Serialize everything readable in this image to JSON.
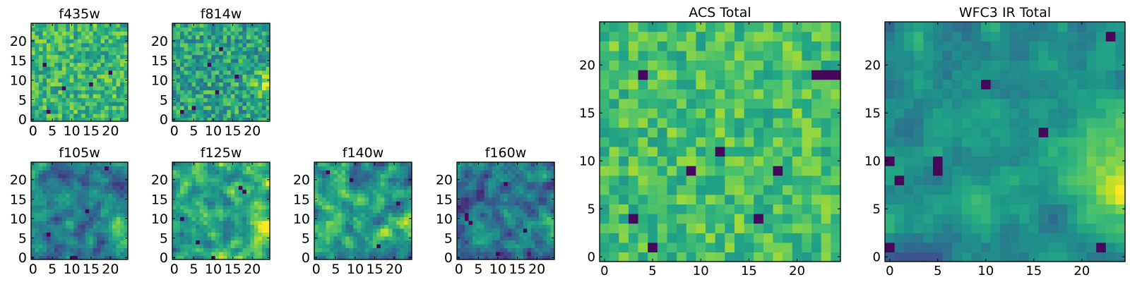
{
  "figure": {
    "panels": [
      {
        "title": "f435w",
        "tick_labels": [
          "0",
          "5",
          "10",
          "15",
          "20"
        ]
      },
      {
        "title": "f814w",
        "tick_labels": [
          "0",
          "5",
          "10",
          "15",
          "20"
        ]
      },
      {
        "title": "f105w",
        "tick_labels": [
          "0",
          "5",
          "10",
          "15",
          "20"
        ]
      },
      {
        "title": "f125w",
        "tick_labels": [
          "0",
          "5",
          "10",
          "15",
          "20"
        ]
      },
      {
        "title": "f140w",
        "tick_labels": [
          "0",
          "5",
          "10",
          "15",
          "20"
        ]
      },
      {
        "title": "f160w",
        "tick_labels": [
          "0",
          "5",
          "10",
          "15",
          "20"
        ]
      },
      {
        "title": "ACS Total",
        "tick_labels": [
          "0",
          "5",
          "10",
          "15",
          "20"
        ]
      },
      {
        "title": "WFC3 IR Total",
        "tick_labels": [
          "0",
          "5",
          "10",
          "15",
          "20"
        ]
      }
    ]
  },
  "chart_data": [
    {
      "type": "heatmap",
      "title": "f435w",
      "grid_size": [
        25,
        25
      ],
      "xlim": [
        0,
        25
      ],
      "ylim": [
        0,
        25
      ],
      "x_ticks": [
        0,
        5,
        10,
        15,
        20
      ],
      "y_ticks": [
        0,
        5,
        10,
        15,
        20
      ],
      "colormap": "viridis",
      "value_range": [
        0,
        1
      ],
      "pattern": "uniform_noise",
      "mean": 0.66,
      "spread": 0.2,
      "dark_pixels": [
        [
          4,
          2
        ],
        [
          8,
          8
        ],
        [
          15,
          9
        ],
        [
          3,
          14
        ],
        [
          20,
          12
        ]
      ],
      "bright_region": null,
      "seed": 11
    },
    {
      "type": "heatmap",
      "title": "f814w",
      "grid_size": [
        25,
        25
      ],
      "xlim": [
        0,
        25
      ],
      "ylim": [
        0,
        25
      ],
      "x_ticks": [
        0,
        5,
        10,
        15,
        20
      ],
      "y_ticks": [
        0,
        5,
        10,
        15,
        20
      ],
      "colormap": "viridis",
      "value_range": [
        0,
        1
      ],
      "pattern": "uniform_noise",
      "mean": 0.58,
      "spread": 0.22,
      "dark_pixels": [
        [
          2,
          2
        ],
        [
          5,
          3
        ],
        [
          11,
          7
        ],
        [
          16,
          11
        ],
        [
          9,
          14
        ],
        [
          12,
          18
        ]
      ],
      "bright_region": {
        "center": [
          24,
          9
        ],
        "radius": 3
      },
      "seed": 23
    },
    {
      "type": "heatmap",
      "title": "f105w",
      "grid_size": [
        25,
        25
      ],
      "xlim": [
        0,
        25
      ],
      "ylim": [
        0,
        25
      ],
      "x_ticks": [
        0,
        5,
        10,
        15,
        20
      ],
      "y_ticks": [
        0,
        5,
        10,
        15,
        20
      ],
      "colormap": "viridis",
      "value_range": [
        0,
        1
      ],
      "pattern": "smooth_noise",
      "mean": 0.42,
      "spread": 0.2,
      "dark_pixels": [
        [
          10,
          0
        ],
        [
          11,
          0
        ],
        [
          4,
          6
        ],
        [
          14,
          12
        ],
        [
          19,
          23
        ]
      ],
      "bright_region": {
        "center": [
          24,
          8
        ],
        "radius": 4
      },
      "seed": 37
    },
    {
      "type": "heatmap",
      "title": "f125w",
      "grid_size": [
        25,
        25
      ],
      "xlim": [
        0,
        25
      ],
      "ylim": [
        0,
        25
      ],
      "x_ticks": [
        0,
        5,
        10,
        15,
        20
      ],
      "y_ticks": [
        0,
        5,
        10,
        15,
        20
      ],
      "colormap": "viridis",
      "value_range": [
        0,
        1
      ],
      "pattern": "smooth_noise",
      "mean": 0.6,
      "spread": 0.22,
      "dark_pixels": [
        [
          17,
          18
        ],
        [
          18,
          17
        ],
        [
          6,
          4
        ],
        [
          10,
          0
        ],
        [
          2,
          10
        ]
      ],
      "bright_region": {
        "center": [
          24,
          8
        ],
        "radius": 4
      },
      "seed": 41
    },
    {
      "type": "heatmap",
      "title": "f140w",
      "grid_size": [
        25,
        25
      ],
      "xlim": [
        0,
        25
      ],
      "ylim": [
        0,
        25
      ],
      "x_ticks": [
        0,
        5,
        10,
        15,
        20
      ],
      "y_ticks": [
        0,
        5,
        10,
        15,
        20
      ],
      "colormap": "viridis",
      "value_range": [
        0,
        1
      ],
      "pattern": "smooth_noise",
      "mean": 0.55,
      "spread": 0.22,
      "dark_pixels": [
        [
          3,
          22
        ],
        [
          9,
          20
        ],
        [
          16,
          3
        ],
        [
          21,
          14
        ]
      ],
      "bright_region": {
        "center": [
          24,
          8
        ],
        "radius": 4
      },
      "seed": 53
    },
    {
      "type": "heatmap",
      "title": "f160w",
      "grid_size": [
        25,
        25
      ],
      "xlim": [
        0,
        25
      ],
      "ylim": [
        0,
        25
      ],
      "x_ticks": [
        0,
        5,
        10,
        15,
        20
      ],
      "y_ticks": [
        0,
        5,
        10,
        15,
        20
      ],
      "colormap": "viridis",
      "value_range": [
        0,
        1
      ],
      "pattern": "smooth_noise",
      "mean": 0.4,
      "spread": 0.2,
      "dark_pixels": [
        [
          2,
          10
        ],
        [
          2,
          11
        ],
        [
          3,
          9
        ],
        [
          10,
          1
        ],
        [
          17,
          7
        ],
        [
          12,
          19
        ]
      ],
      "bright_region": {
        "center": [
          24,
          8
        ],
        "radius": 3
      },
      "seed": 67
    },
    {
      "type": "heatmap",
      "title": "ACS Total",
      "grid_size": [
        25,
        25
      ],
      "xlim": [
        0,
        25
      ],
      "ylim": [
        0,
        25
      ],
      "x_ticks": [
        0,
        5,
        10,
        15,
        20
      ],
      "y_ticks": [
        0,
        5,
        10,
        15,
        20
      ],
      "colormap": "viridis",
      "value_range": [
        0,
        1
      ],
      "pattern": "uniform_noise",
      "mean": 0.7,
      "spread": 0.16,
      "dark_pixels": [
        [
          22,
          19
        ],
        [
          23,
          19
        ],
        [
          24,
          19
        ],
        [
          4,
          19
        ],
        [
          9,
          9
        ],
        [
          18,
          9
        ],
        [
          12,
          11
        ],
        [
          16,
          4
        ],
        [
          3,
          4
        ],
        [
          5,
          1
        ]
      ],
      "bright_region": null,
      "seed": 79
    },
    {
      "type": "heatmap",
      "title": "WFC3 IR Total",
      "grid_size": [
        25,
        25
      ],
      "xlim": [
        0,
        25
      ],
      "ylim": [
        0,
        25
      ],
      "x_ticks": [
        0,
        5,
        10,
        15,
        20
      ],
      "y_ticks": [
        0,
        5,
        10,
        15,
        20
      ],
      "colormap": "viridis",
      "value_range": [
        0,
        1
      ],
      "pattern": "smooth_noise",
      "mean": 0.5,
      "spread": 0.12,
      "dark_pixels": [
        [
          0,
          1
        ],
        [
          0,
          10
        ],
        [
          1,
          8
        ],
        [
          5,
          9
        ],
        [
          5,
          10
        ],
        [
          10,
          18
        ],
        [
          16,
          13
        ],
        [
          23,
          23
        ],
        [
          22,
          1
        ]
      ],
      "bright_region": {
        "center": [
          24,
          8
        ],
        "radius": 5
      },
      "seed": 97
    }
  ]
}
